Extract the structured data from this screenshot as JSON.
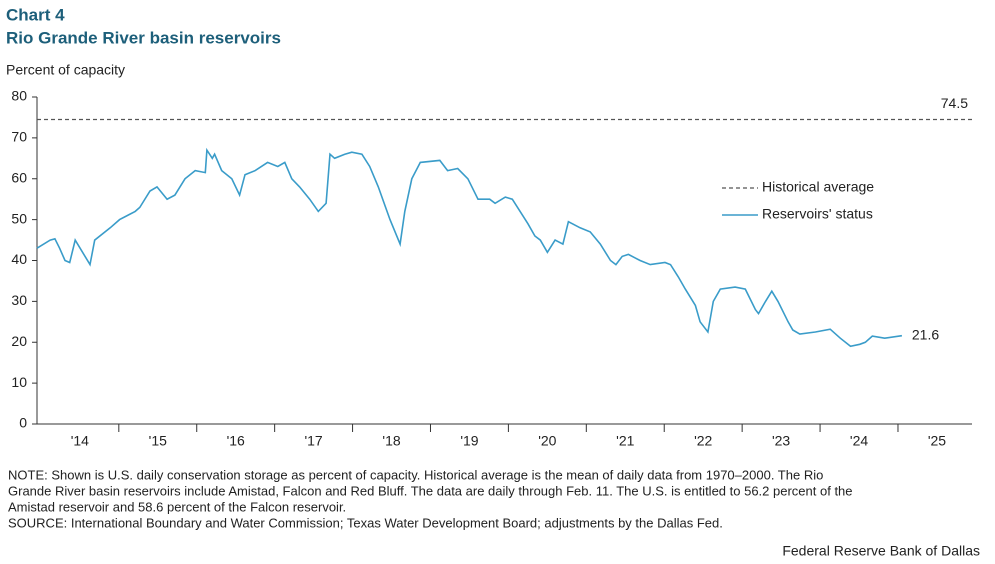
{
  "chart_data": {
    "type": "line",
    "title": "Chart 4",
    "subtitle": "Rio Grande River basin reservoirs",
    "y_label": "Percent of capacity",
    "x": [
      2013.95,
      2014.12,
      2014.18,
      2014.24,
      2014.31,
      2014.37,
      2014.44,
      2014.63,
      2014.69,
      2014.89,
      2015.01,
      2015.21,
      2015.27,
      2015.4,
      2015.49,
      2015.62,
      2015.72,
      2015.85,
      2015.98,
      2016.11,
      2016.13,
      2016.2,
      2016.23,
      2016.32,
      2016.45,
      2016.55,
      2016.62,
      2016.75,
      2016.91,
      2017.04,
      2017.13,
      2017.22,
      2017.32,
      2017.45,
      2017.56,
      2017.66,
      2017.71,
      2017.77,
      2017.9,
      2017.99,
      2018.12,
      2018.22,
      2018.33,
      2018.48,
      2018.61,
      2018.67,
      2018.76,
      2018.87,
      2019.12,
      2019.22,
      2019.35,
      2019.48,
      2019.61,
      2019.76,
      2019.83,
      2019.96,
      2020.05,
      2020.15,
      2020.25,
      2020.34,
      2020.41,
      2020.5,
      2020.6,
      2020.7,
      2020.77,
      2020.92,
      2021.05,
      2021.18,
      2021.31,
      2021.38,
      2021.46,
      2021.54,
      2021.69,
      2021.82,
      2022.01,
      2022.08,
      2022.18,
      2022.27,
      2022.4,
      2022.46,
      2022.56,
      2022.63,
      2022.72,
      2022.91,
      2023.04,
      2023.17,
      2023.21,
      2023.3,
      2023.38,
      2023.46,
      2023.59,
      2023.65,
      2023.74,
      2023.94,
      2024.13,
      2024.26,
      2024.39,
      2024.51,
      2024.58,
      2024.67,
      2024.83,
      2025.05
    ],
    "series": [
      {
        "name": "Reservoirs' status",
        "color": "#3a9cc9",
        "values": [
          43,
          45,
          45.3,
          43,
          40,
          39.5,
          45,
          39,
          45,
          48,
          50,
          52,
          53,
          57,
          58,
          55,
          56,
          60,
          62,
          61.5,
          67,
          65,
          66,
          62,
          60,
          56,
          61,
          62,
          64,
          63,
          64,
          60,
          58,
          55,
          52,
          54,
          66,
          65,
          66,
          66.5,
          66,
          63,
          58,
          50,
          44,
          52,
          60,
          64,
          64.5,
          62,
          62.5,
          60,
          55,
          55,
          54,
          55.5,
          55,
          52,
          49,
          46,
          45,
          42,
          45,
          44,
          49.5,
          48,
          47,
          44,
          40,
          39,
          41,
          41.5,
          40,
          39,
          39.5,
          39,
          36,
          33,
          29,
          25,
          22.5,
          30,
          33,
          33.5,
          33,
          28,
          27,
          30,
          32.5,
          30,
          25,
          23,
          22,
          22.5,
          23.2,
          21,
          19,
          19.5,
          20,
          21.5,
          21,
          21.6
        ]
      }
    ],
    "reference_line": {
      "name": "Historical average",
      "value": 74.5,
      "color": "#555555"
    },
    "xlim": [
      2013.95,
      2025.95
    ],
    "xticks": [
      {
        "value": 2014.5,
        "label": "'14"
      },
      {
        "value": 2015.5,
        "label": "'15"
      },
      {
        "value": 2016.5,
        "label": "'16"
      },
      {
        "value": 2017.5,
        "label": "'17"
      },
      {
        "value": 2018.5,
        "label": "'18"
      },
      {
        "value": 2019.5,
        "label": "'19"
      },
      {
        "value": 2020.5,
        "label": "'20"
      },
      {
        "value": 2021.5,
        "label": "'21"
      },
      {
        "value": 2022.5,
        "label": "'22"
      },
      {
        "value": 2023.5,
        "label": "'23"
      },
      {
        "value": 2024.5,
        "label": "'24"
      },
      {
        "value": 2025.5,
        "label": "'25"
      }
    ],
    "xtick_marks": [
      2015,
      2016,
      2017,
      2018,
      2019,
      2020,
      2021,
      2022,
      2023,
      2024,
      2025
    ],
    "ylim": [
      0,
      80
    ],
    "yticks": [
      0,
      10,
      20,
      30,
      40,
      50,
      60,
      70,
      80
    ],
    "legend": "right",
    "notes": [
      "NOTE: Shown is U.S. daily conservation storage as percent of capacity. Historical average is the mean of daily data from 1970–2000. The Rio",
      "Grande River basin reservoirs include Amistad, Falcon and Red Bluff. The data are daily through Feb. 11. The U.S. is entitled to 56.2 percent of the",
      "Amistad reservoir and 58.6 percent of the Falcon reservoir.",
      "SOURCE: International  Boundary and Water Commission; Texas Water Development Board; adjustments by the Dallas Fed."
    ],
    "credit": "Federal Reserve Bank of Dallas"
  }
}
